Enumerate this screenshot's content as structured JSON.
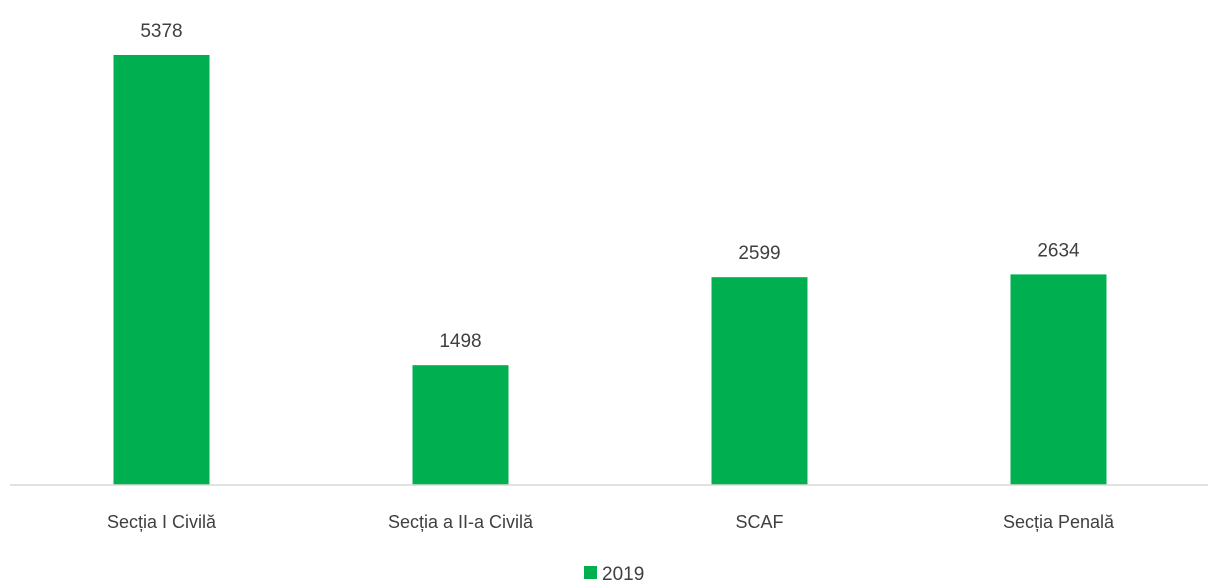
{
  "chart_data": {
    "type": "bar",
    "categories": [
      "Secția I Civilă",
      "Secția a II-a Civilă",
      "SCAF",
      "Secția Penală"
    ],
    "series": [
      {
        "name": "2019",
        "values": [
          5378,
          1498,
          2599,
          2634
        ],
        "color": "#00b050"
      }
    ],
    "value_labels": [
      "5378",
      "1498",
      "2599",
      "2634"
    ],
    "ylim": [
      0,
      5500
    ],
    "y_axis_visible": false,
    "grid": false,
    "legend_position": "bottom",
    "axis_color": "#d9d9d9"
  }
}
